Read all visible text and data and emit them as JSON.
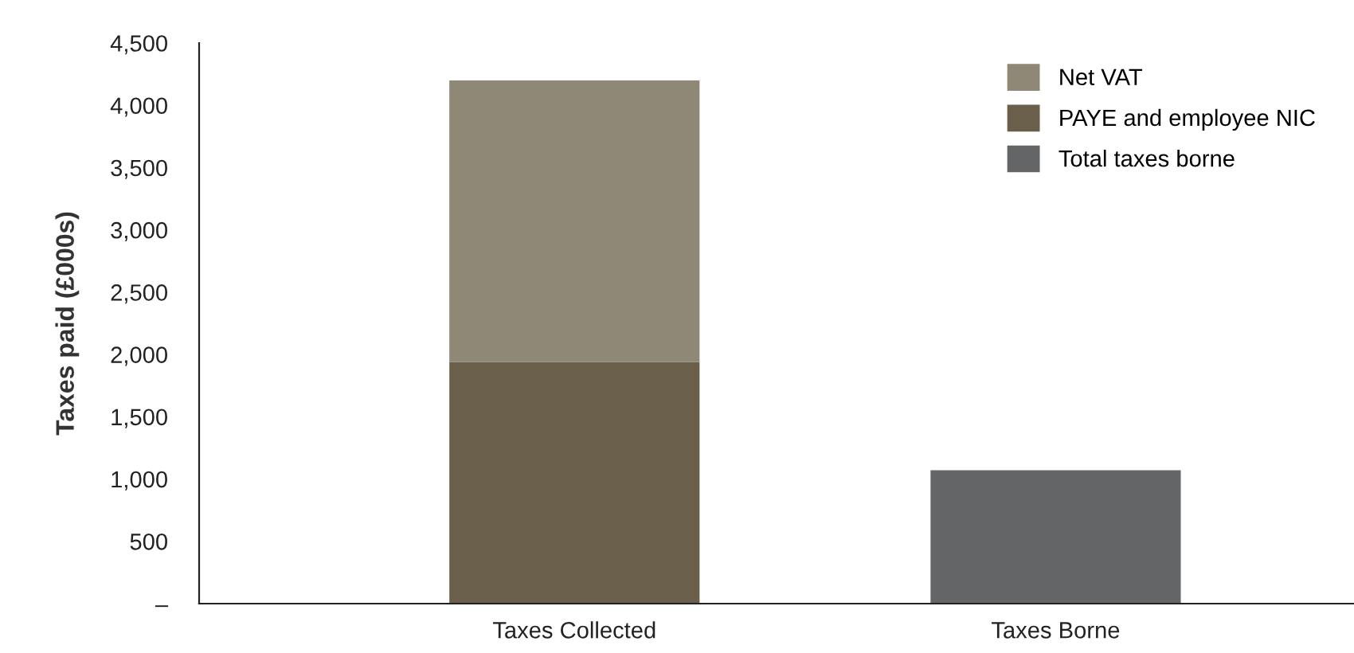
{
  "chart_data": {
    "type": "bar",
    "stacked": true,
    "ylabel": "Taxes paid (£000s)",
    "categories": [
      "Taxes Collected",
      "Taxes Borne"
    ],
    "series": [
      {
        "name": "Total taxes borne",
        "color": "#646567",
        "values": [
          null,
          1070
        ]
      },
      {
        "name": "PAYE and employee NIC",
        "color": "#6a5f4b",
        "values": [
          1940,
          null
        ]
      },
      {
        "name": "Net VAT",
        "color": "#8f8877",
        "values": [
          2260,
          null
        ]
      }
    ],
    "ylim": [
      0,
      4500
    ],
    "yticks": [
      {
        "value": 0,
        "label": "–"
      },
      500,
      {
        "value": 1000,
        "label": "1,000"
      },
      {
        "value": 1500,
        "label": "1,500"
      },
      {
        "value": 2000,
        "label": "2,000"
      },
      {
        "value": 2500,
        "label": "2,500"
      },
      {
        "value": 3000,
        "label": "3,000"
      },
      {
        "value": 3500,
        "label": "3,500"
      },
      {
        "value": 4000,
        "label": "4,000"
      },
      {
        "value": 4500,
        "label": "4,500"
      }
    ],
    "grid": false,
    "legend": "top right"
  }
}
